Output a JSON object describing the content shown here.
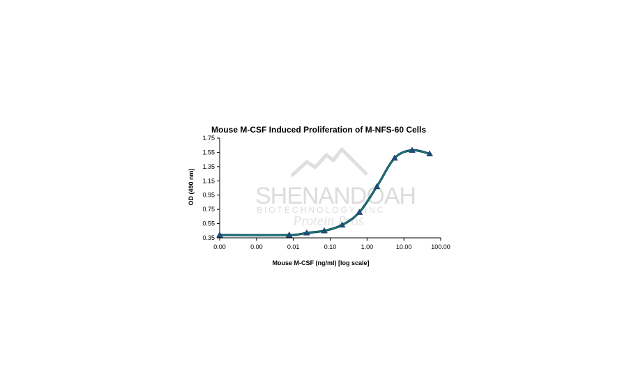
{
  "chart_data": {
    "type": "line",
    "title": "Mouse M-CSF Induced Proliferation of M-NFS-60 Cells",
    "xlabel": "Mouse M-CSF (ng/ml) [log scale]",
    "ylabel": "OD (490 nm)",
    "x_scale": "log",
    "x_ticks": [
      0.0001,
      0.001,
      0.01,
      0.1,
      1,
      10,
      100
    ],
    "x_tick_labels": [
      "0.00",
      "0.00",
      "0.01",
      "0.10",
      "1.00",
      "10.00",
      "100.00"
    ],
    "y_ticks": [
      0.35,
      0.55,
      0.75,
      0.95,
      1.15,
      1.35,
      1.55,
      1.75
    ],
    "y_tick_labels": [
      "0.35",
      "0.55",
      "0.75",
      "0.95",
      "1.15",
      "1.35",
      "1.55",
      "1.75"
    ],
    "xlim": [
      0.0001,
      100
    ],
    "ylim": [
      0.35,
      1.75
    ],
    "grid": false,
    "legend": "none",
    "series": [
      {
        "marker": "triangle",
        "marker_color": "#1f4e79",
        "line_color": "#1a7a78",
        "x": [
          0.0001,
          0.0077,
          0.023,
          0.069,
          0.21,
          0.62,
          1.85,
          5.6,
          16.7,
          50
        ],
        "y": [
          0.39,
          0.39,
          0.42,
          0.45,
          0.53,
          0.71,
          1.07,
          1.47,
          1.58,
          1.53
        ]
      }
    ],
    "watermark": {
      "name": "SHENANDOAH",
      "sub": "BIOTECHNOLOGY, INC",
      "script": "Protein Pros"
    }
  }
}
